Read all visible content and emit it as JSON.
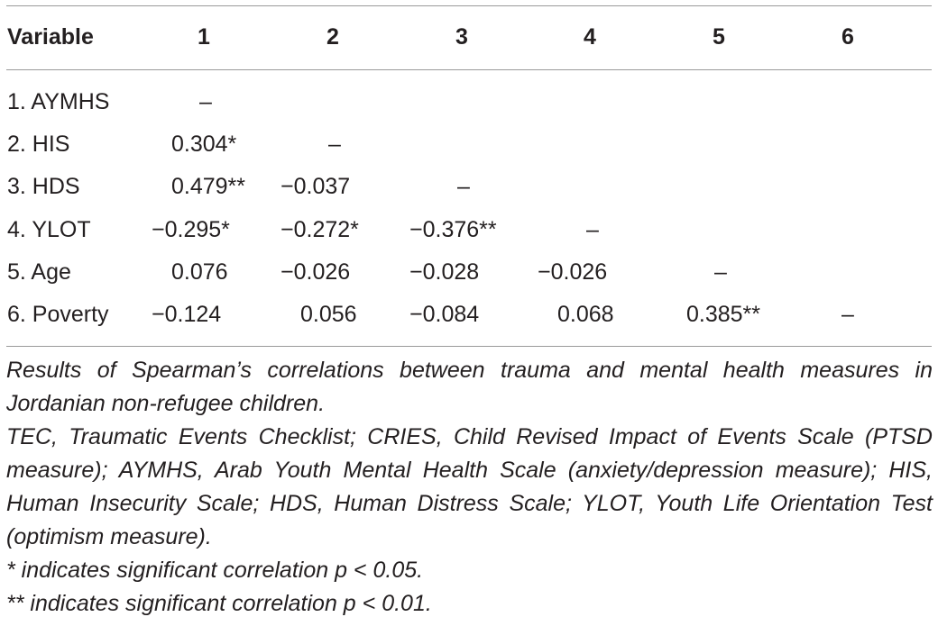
{
  "table": {
    "header": {
      "label": "Variable",
      "cols": [
        "1",
        "2",
        "3",
        "4",
        "5",
        "6"
      ]
    },
    "rows": [
      {
        "label": "1. AYMHS",
        "cells": [
          "–",
          "",
          "",
          "",
          "",
          ""
        ]
      },
      {
        "label": "2. HIS",
        "cells": [
          "0.304*",
          "–",
          "",
          "",
          "",
          ""
        ]
      },
      {
        "label": "3. HDS",
        "cells": [
          "0.479**",
          "−0.037",
          "–",
          "",
          "",
          ""
        ]
      },
      {
        "label": "4. YLOT",
        "cells": [
          "−0.295*",
          "−0.272*",
          "−0.376**",
          "–",
          "",
          ""
        ]
      },
      {
        "label": "5. Age",
        "cells": [
          "0.076",
          "−0.026",
          "−0.028",
          "−0.026",
          "–",
          ""
        ]
      },
      {
        "label": "6. Poverty",
        "cells": [
          "−0.124",
          "0.056",
          "−0.084",
          "0.068",
          "0.385**",
          "–"
        ]
      }
    ]
  },
  "notes": {
    "caption": "Results of Spearman’s correlations between trauma and mental health measures in Jordanian non-refugee children.",
    "abbreviations": "TEC, Traumatic Events Checklist; CRIES, Child Revised Impact of Events Scale (PTSD measure); AYMHS, Arab Youth Mental Health Scale (anxiety/depression measure); HIS, Human Insecurity Scale; HDS, Human Distress Scale; YLOT, Youth Life Orientation Test (optimism measure).",
    "sig1": "* indicates significant correlation p < 0.05.",
    "sig2": "** indicates significant correlation p < 0.01."
  }
}
